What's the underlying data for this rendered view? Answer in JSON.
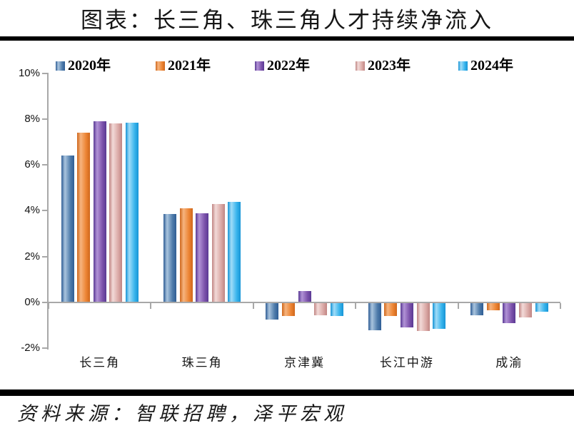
{
  "header": {
    "title": "图表：长三角、珠三角人才持续净流入"
  },
  "footer": {
    "source": "资料来源：智联招聘，泽平宏观"
  },
  "chart_data": {
    "type": "bar",
    "title": "图表：长三角、珠三角人才持续净流入",
    "unit": "percent",
    "categories": [
      "长三角",
      "珠三角",
      "京津冀",
      "长江中游",
      "成渝"
    ],
    "series": [
      {
        "name": "2020年",
        "color": "#4f7cab",
        "light": "#aac4de",
        "dark": "#2f5e95",
        "values": [
          6.4,
          3.85,
          -0.75,
          -1.2,
          -0.55
        ]
      },
      {
        "name": "2021年",
        "color": "#ec8433",
        "light": "#f6b47e",
        "dark": "#cf671c",
        "values": [
          7.4,
          4.1,
          -0.6,
          -0.6,
          -0.35
        ]
      },
      {
        "name": "2022年",
        "color": "#7c52ab",
        "light": "#b193d6",
        "dark": "#5a3a94",
        "values": [
          7.9,
          3.9,
          0.5,
          -1.1,
          -0.9
        ]
      },
      {
        "name": "2023年",
        "color": "#dbaaa7",
        "light": "#f2dad8",
        "dark": "#c08583",
        "values": [
          7.8,
          4.3,
          -0.55,
          -1.25,
          -0.65
        ]
      },
      {
        "name": "2024年",
        "color": "#38b4ec",
        "light": "#a0dcf8",
        "dark": "#1694d6",
        "values": [
          7.85,
          4.4,
          -0.6,
          -1.15,
          -0.4
        ]
      }
    ],
    "ylim": [
      -2,
      10
    ],
    "yticks": [
      {
        "value": 10,
        "label": "10%"
      },
      {
        "value": 8,
        "label": "8%"
      },
      {
        "value": 6,
        "label": "6%"
      },
      {
        "value": 4,
        "label": "4%"
      },
      {
        "value": 2,
        "label": "2%"
      },
      {
        "value": 0,
        "label": "0%"
      },
      {
        "value": -2,
        "label": "-2%"
      }
    ],
    "legend_position": "top",
    "grid": false,
    "axis_color": "#a8a8a8"
  }
}
